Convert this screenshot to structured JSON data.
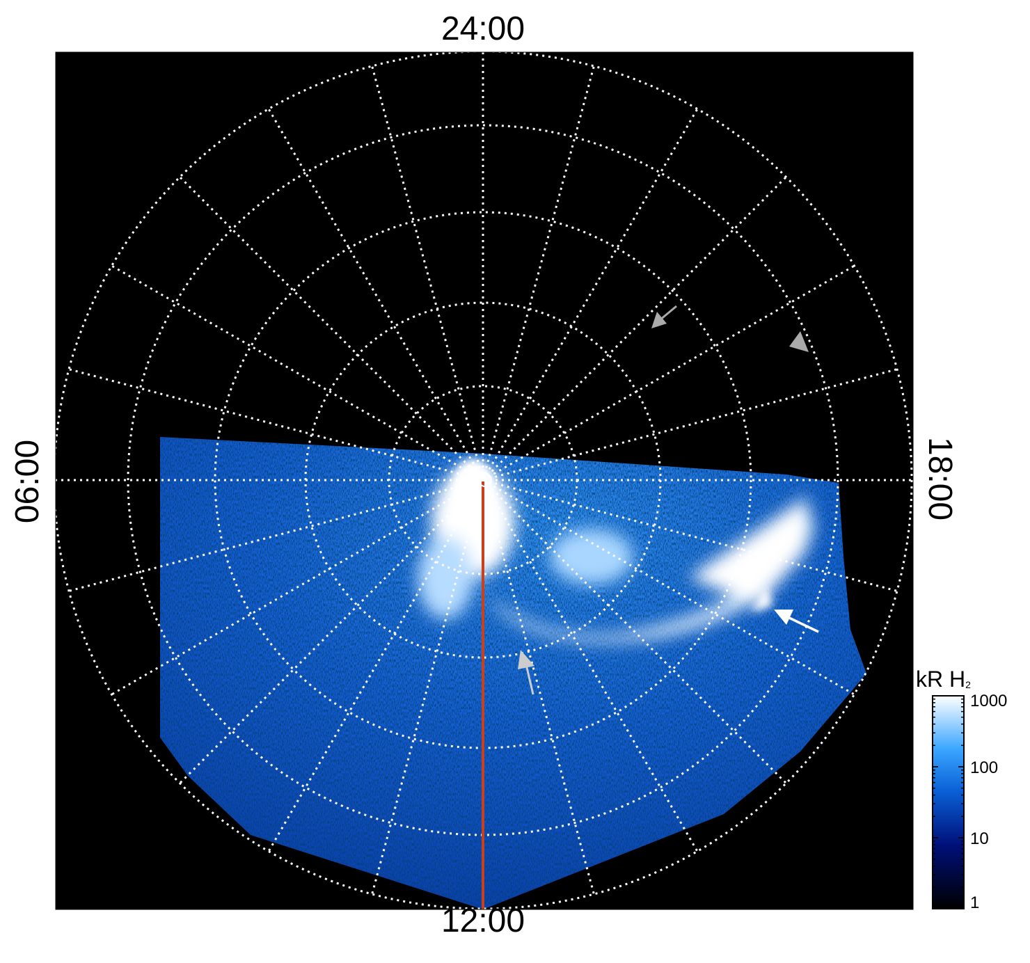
{
  "figure": {
    "local_time_labels": {
      "top": "24:00",
      "bottom": "12:00",
      "left": "06:00",
      "right": "18:00"
    },
    "colorbar": {
      "title": "kR H",
      "title_subscript": "2",
      "ticks": [
        "1000",
        "100",
        "10",
        "1"
      ],
      "scale": "log",
      "range": [
        1,
        1000
      ],
      "colors": [
        "#000000",
        "#00107a",
        "#0a5fd6",
        "#3aa6ff",
        "#ffffff"
      ]
    },
    "overlay": {
      "grid_style": "dotted",
      "grid_color": "#ffffff",
      "meridian_line_color": "#c8401c",
      "arrows": [
        "gray",
        "gray",
        "light-gray",
        "white"
      ]
    }
  },
  "chart_data": {
    "type": "heatmap",
    "projection": "polar",
    "title": "",
    "xlabel": "",
    "ylabel": "",
    "local_time_axis": [
      "24:00",
      "06:00",
      "12:00",
      "18:00"
    ],
    "color_scale": {
      "label": "kR H2",
      "log": true,
      "min": 1,
      "max": 1000,
      "tick_values": [
        1,
        10,
        100,
        1000
      ]
    },
    "grid": true,
    "legend": "right (colorbar)"
  }
}
